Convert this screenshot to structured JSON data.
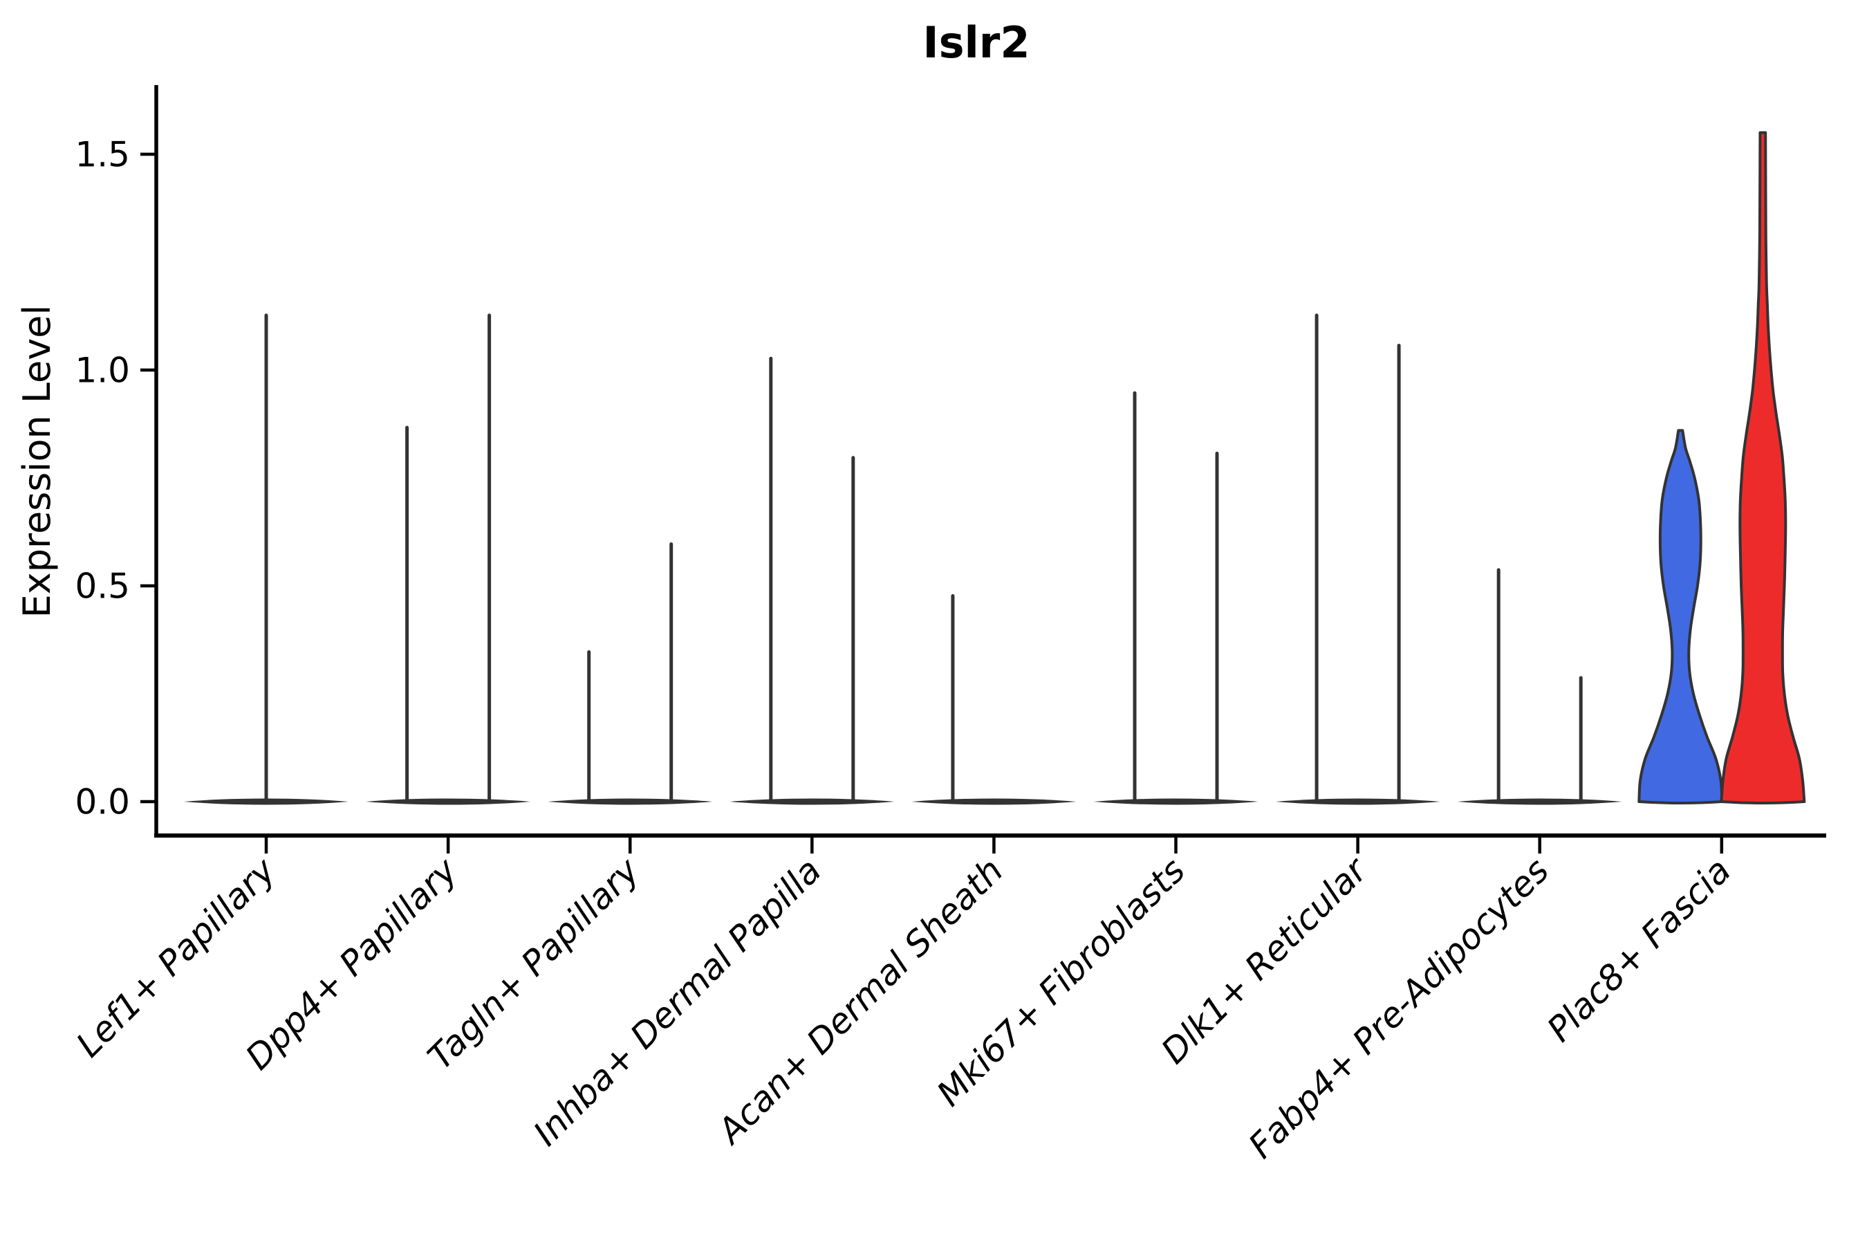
{
  "title": "Islr2",
  "ylabel": "Expression Level",
  "colors": {
    "blue_fill": "#4169E1",
    "red_fill": "#EE2B2B",
    "violin_stroke": "#333333",
    "axis": "#000000",
    "background": "#ffffff"
  },
  "chart_data": {
    "type": "violin",
    "title": "Islr2",
    "xlabel": "",
    "ylabel": "Expression Level",
    "ylim": [
      0,
      1.66
    ],
    "yticks": [
      0.0,
      0.5,
      1.0,
      1.5
    ],
    "ytick_labels": [
      "0.0",
      "0.5",
      "1.0",
      "1.5"
    ],
    "grid": "off",
    "legend": "none",
    "categories": [
      "Lef1+ Papillary",
      "Dpp4+ Papillary",
      "Tagln+ Papillary",
      "Inhba+ Dermal Papilla",
      "Acan+ Dermal Sheath",
      "Mki67+ Fibroblasts",
      "Dlk1+ Reticular",
      "Fabp4+ Pre-Adipocytes",
      "Plac8+ Fascia"
    ],
    "violins": [
      {
        "category_index": 0,
        "position": "center",
        "style": "collapsed",
        "max_expression": 1.13
      },
      {
        "category_index": 1,
        "position": "left",
        "style": "collapsed",
        "max_expression": 0.87
      },
      {
        "category_index": 1,
        "position": "right",
        "style": "collapsed",
        "max_expression": 1.13
      },
      {
        "category_index": 2,
        "position": "left",
        "style": "collapsed",
        "max_expression": 0.35
      },
      {
        "category_index": 2,
        "position": "right",
        "style": "collapsed",
        "max_expression": 0.6
      },
      {
        "category_index": 3,
        "position": "left",
        "style": "collapsed",
        "max_expression": 1.03
      },
      {
        "category_index": 3,
        "position": "right",
        "style": "collapsed",
        "max_expression": 0.8
      },
      {
        "category_index": 4,
        "position": "left",
        "style": "collapsed",
        "max_expression": 0.48
      },
      {
        "category_index": 4,
        "position": "right",
        "style": "collapsed",
        "max_expression": 0.0
      },
      {
        "category_index": 5,
        "position": "left",
        "style": "collapsed",
        "max_expression": 0.95
      },
      {
        "category_index": 5,
        "position": "right",
        "style": "collapsed",
        "max_expression": 0.81
      },
      {
        "category_index": 6,
        "position": "left",
        "style": "collapsed",
        "max_expression": 1.13
      },
      {
        "category_index": 6,
        "position": "right",
        "style": "collapsed",
        "max_expression": 1.06
      },
      {
        "category_index": 7,
        "position": "left",
        "style": "collapsed",
        "max_expression": 0.54
      },
      {
        "category_index": 7,
        "position": "right",
        "style": "collapsed",
        "max_expression": 0.29
      },
      {
        "category_index": 8,
        "position": "left",
        "style": "filled",
        "fill": "blue_fill",
        "max_expression": 0.86,
        "profile": [
          [
            0,
            1.0
          ],
          [
            0.05,
            0.97
          ],
          [
            0.1,
            0.85
          ],
          [
            0.15,
            0.64
          ],
          [
            0.2,
            0.46
          ],
          [
            0.25,
            0.31
          ],
          [
            0.3,
            0.22
          ],
          [
            0.35,
            0.2
          ],
          [
            0.4,
            0.24
          ],
          [
            0.45,
            0.32
          ],
          [
            0.5,
            0.41
          ],
          [
            0.55,
            0.47
          ],
          [
            0.6,
            0.49
          ],
          [
            0.65,
            0.48
          ],
          [
            0.7,
            0.44
          ],
          [
            0.75,
            0.34
          ],
          [
            0.79,
            0.22
          ],
          [
            0.82,
            0.12
          ],
          [
            0.86,
            0.05
          ]
        ]
      },
      {
        "category_index": 8,
        "position": "right",
        "style": "filled",
        "fill": "red_fill",
        "max_expression": 1.55,
        "profile": [
          [
            0,
            1.0
          ],
          [
            0.05,
            0.96
          ],
          [
            0.1,
            0.88
          ],
          [
            0.15,
            0.73
          ],
          [
            0.2,
            0.6
          ],
          [
            0.25,
            0.52
          ],
          [
            0.3,
            0.48
          ],
          [
            0.35,
            0.475
          ],
          [
            0.4,
            0.48
          ],
          [
            0.5,
            0.52
          ],
          [
            0.6,
            0.545
          ],
          [
            0.65,
            0.55
          ],
          [
            0.7,
            0.54
          ],
          [
            0.75,
            0.51
          ],
          [
            0.8,
            0.47
          ],
          [
            0.85,
            0.4
          ],
          [
            0.9,
            0.32
          ],
          [
            0.95,
            0.25
          ],
          [
            1.0,
            0.2
          ],
          [
            1.05,
            0.16
          ],
          [
            1.1,
            0.13
          ],
          [
            1.15,
            0.11
          ],
          [
            1.2,
            0.09
          ],
          [
            1.3,
            0.075
          ],
          [
            1.4,
            0.07
          ],
          [
            1.55,
            0.065
          ]
        ]
      }
    ]
  }
}
